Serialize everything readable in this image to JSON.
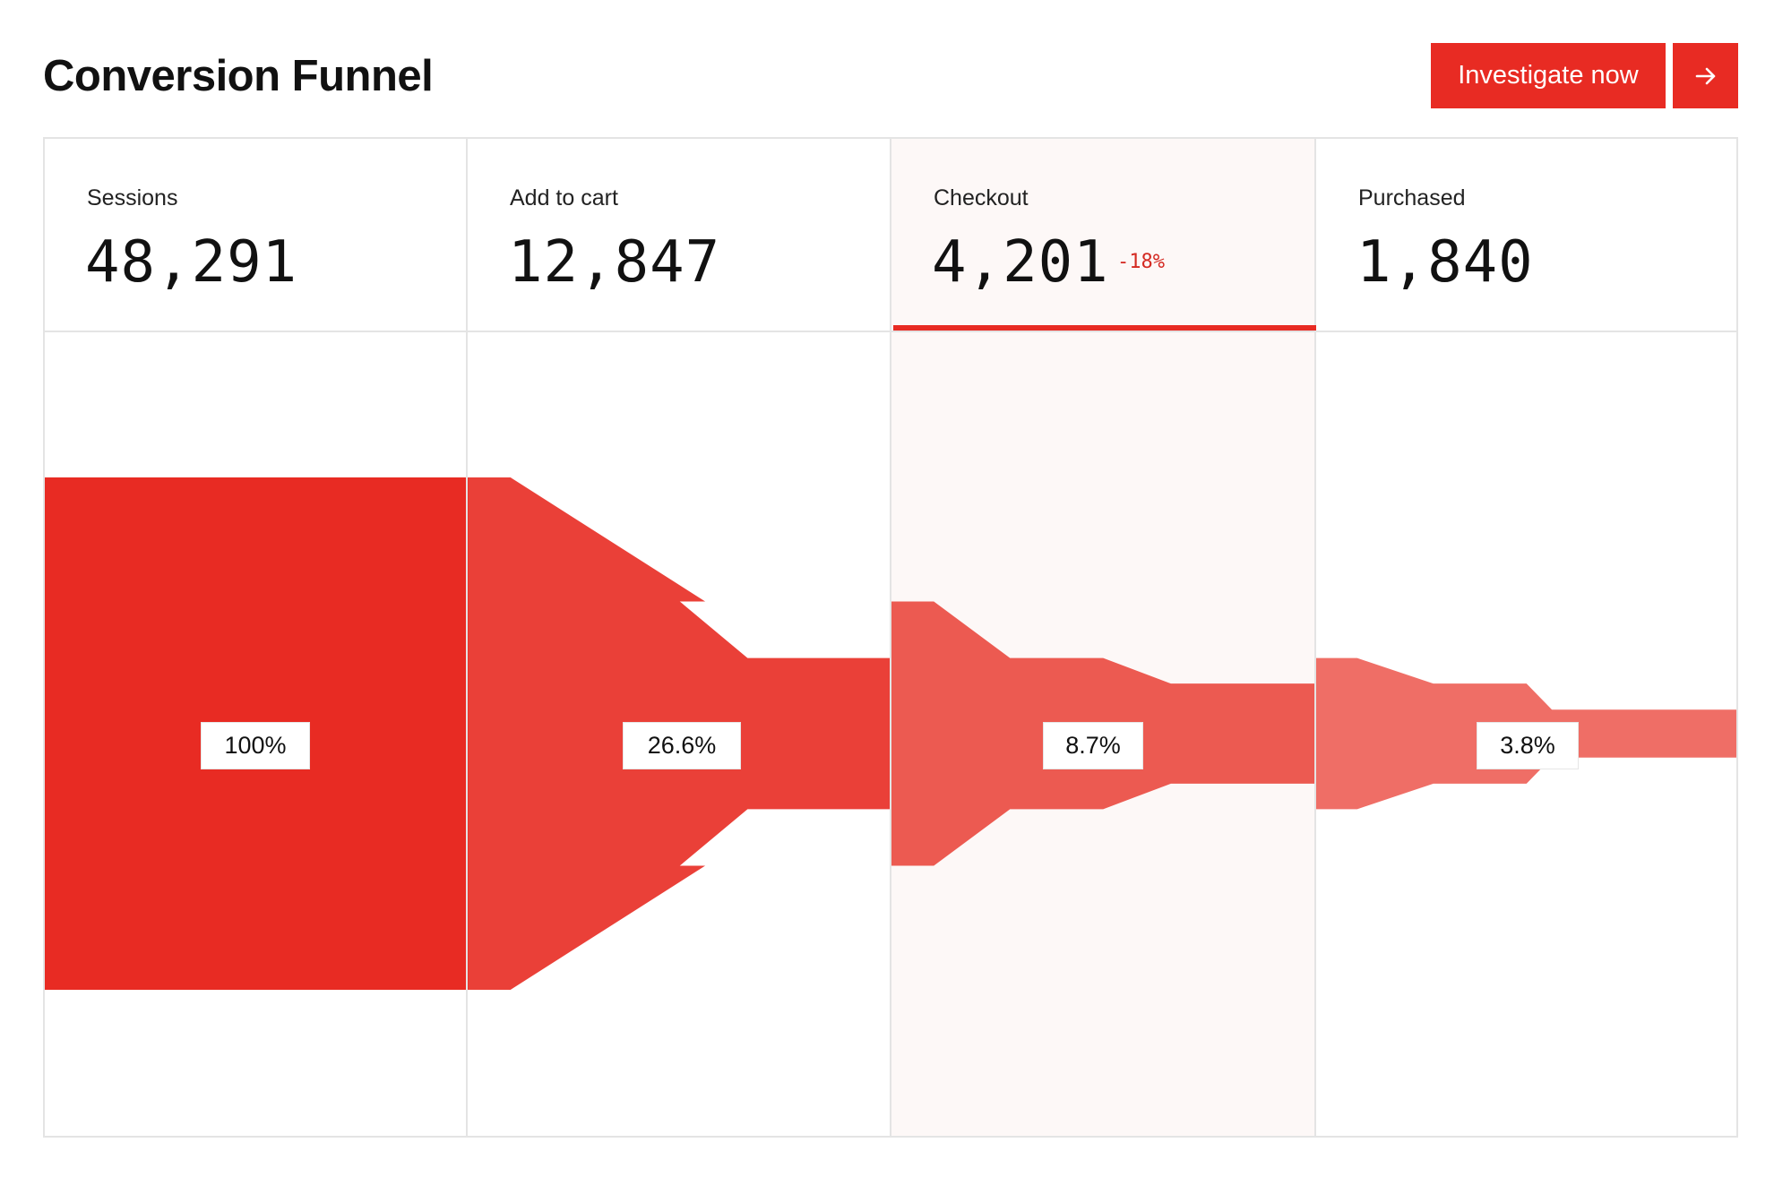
{
  "header": {
    "title": "Conversion Funnel",
    "cta_label": "Investigate now",
    "arrow_icon": "arrow-right-icon"
  },
  "stages": [
    {
      "label": "Sessions",
      "value": "48,291",
      "percent": "100%"
    },
    {
      "label": "Add to cart",
      "value": "12,847",
      "percent": "26.6%"
    },
    {
      "label": "Checkout",
      "value": "4,201",
      "percent": "8.7%",
      "delta": "-18%"
    },
    {
      "label": "Purchased",
      "value": "1,840",
      "percent": "3.8%"
    }
  ],
  "colors": {
    "accent": "#e82b23",
    "highlight_bg": "#fdf8f7",
    "delta": "#d42a22",
    "band_fills": [
      "#e82b23",
      "#ea4038",
      "#ec5a51",
      "#ef6e66"
    ]
  },
  "chart_data": {
    "type": "funnel",
    "categories": [
      "Sessions",
      "Add to cart",
      "Checkout",
      "Purchased"
    ],
    "values": [
      48291,
      12847,
      4201,
      1840
    ],
    "percent_of_sessions": [
      100,
      26.6,
      8.7,
      3.8
    ],
    "highlighted_stage": "Checkout",
    "highlighted_delta": "-18%"
  }
}
